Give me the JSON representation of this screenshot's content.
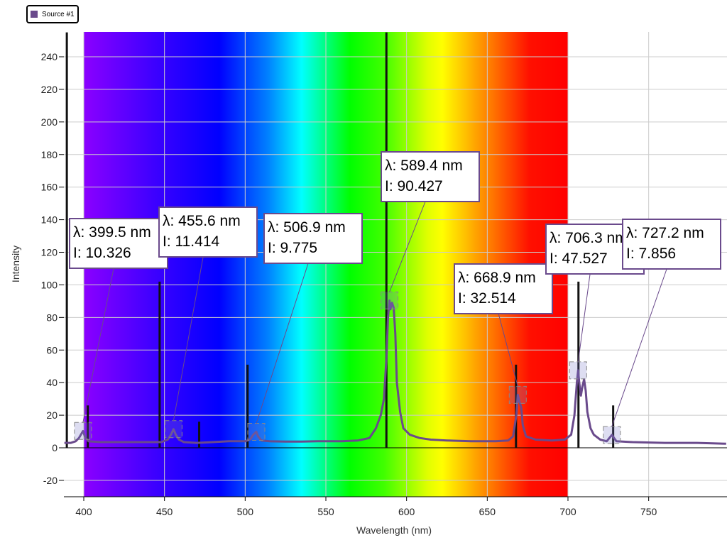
{
  "legend": {
    "items": [
      {
        "label": "Source #1",
        "color": "#6a4a8c"
      }
    ]
  },
  "chart_data": {
    "type": "line",
    "title": "",
    "xlabel": "Wavelength (nm)",
    "ylabel": "Intensity",
    "xlim": [
      388,
      798
    ],
    "ylim": [
      -30,
      255
    ],
    "x_ticks": [
      400,
      450,
      500,
      550,
      600,
      650,
      700,
      750
    ],
    "y_ticks": [
      -20,
      0,
      20,
      40,
      60,
      80,
      100,
      120,
      140,
      160,
      180,
      200,
      220,
      240
    ],
    "spectrum_band": [
      400,
      700
    ],
    "grid": true,
    "series": [
      {
        "name": "Source #1",
        "color": "#6a4a8c",
        "points": [
          [
            388,
            3
          ],
          [
            392,
            3
          ],
          [
            395,
            4
          ],
          [
            397,
            6
          ],
          [
            399.5,
            10.3
          ],
          [
            401,
            6
          ],
          [
            403,
            4
          ],
          [
            410,
            3.5
          ],
          [
            420,
            3.5
          ],
          [
            430,
            3.5
          ],
          [
            440,
            3.5
          ],
          [
            448,
            3.5
          ],
          [
            452,
            5
          ],
          [
            454,
            8
          ],
          [
            455.6,
            11.4
          ],
          [
            457,
            8
          ],
          [
            459,
            5
          ],
          [
            462,
            3.5
          ],
          [
            470,
            3
          ],
          [
            480,
            3.5
          ],
          [
            490,
            4
          ],
          [
            495,
            4
          ],
          [
            500,
            4
          ],
          [
            503,
            5
          ],
          [
            505,
            8
          ],
          [
            506.9,
            9.8
          ],
          [
            508,
            7
          ],
          [
            510,
            4.5
          ],
          [
            515,
            4
          ],
          [
            525,
            3.8
          ],
          [
            535,
            3.8
          ],
          [
            545,
            4
          ],
          [
            560,
            4
          ],
          [
            570,
            4.5
          ],
          [
            577,
            6
          ],
          [
            581,
            12
          ],
          [
            584,
            20
          ],
          [
            586,
            30
          ],
          [
            587.5,
            55
          ],
          [
            588.5,
            80
          ],
          [
            589.4,
            90.4
          ],
          [
            590,
            85
          ],
          [
            591,
            89
          ],
          [
            592,
            86
          ],
          [
            593,
            70
          ],
          [
            594,
            40
          ],
          [
            596,
            22
          ],
          [
            598,
            12
          ],
          [
            602,
            8
          ],
          [
            608,
            6
          ],
          [
            615,
            5
          ],
          [
            625,
            4.5
          ],
          [
            640,
            4
          ],
          [
            655,
            4
          ],
          [
            663,
            4.5
          ],
          [
            666,
            7
          ],
          [
            668,
            20
          ],
          [
            668.9,
            32.5
          ],
          [
            670,
            28
          ],
          [
            671,
            25
          ],
          [
            672,
            14
          ],
          [
            674,
            7
          ],
          [
            680,
            5
          ],
          [
            690,
            4.5
          ],
          [
            698,
            5
          ],
          [
            702,
            8
          ],
          [
            704,
            20
          ],
          [
            705.5,
            40
          ],
          [
            706.3,
            47.5
          ],
          [
            707,
            40
          ],
          [
            708,
            32
          ],
          [
            709,
            38
          ],
          [
            710,
            42
          ],
          [
            711,
            35
          ],
          [
            712,
            22
          ],
          [
            714,
            12
          ],
          [
            716,
            8
          ],
          [
            720,
            5
          ],
          [
            724,
            4
          ],
          [
            727.2,
            7.9
          ],
          [
            730,
            4
          ],
          [
            740,
            3.5
          ],
          [
            760,
            3
          ],
          [
            780,
            3
          ],
          [
            798,
            2.5
          ]
        ]
      }
    ],
    "reference_lines": [
      {
        "x": 389.5,
        "height": 255
      },
      {
        "x": 402.5,
        "height": 26
      },
      {
        "x": 447,
        "height": 102
      },
      {
        "x": 471.5,
        "height": 16
      },
      {
        "x": 501.5,
        "height": 51
      },
      {
        "x": 587.5,
        "height": 255
      },
      {
        "x": 667.8,
        "height": 51
      },
      {
        "x": 706.5,
        "height": 102
      },
      {
        "x": 728,
        "height": 26
      }
    ],
    "annotations": [
      {
        "line1": "λ: 399.5 nm",
        "line2": "I: 10.326",
        "x": 399.5,
        "y": 10.326
      },
      {
        "line1": "λ: 455.6 nm",
        "line2": "I: 11.414",
        "x": 455.6,
        "y": 11.414
      },
      {
        "line1": "λ: 506.9 nm",
        "line2": "I: 9.775",
        "x": 506.9,
        "y": 9.775
      },
      {
        "line1": "λ: 589.4 nm",
        "line2": "I: 90.427",
        "x": 589.4,
        "y": 90.427
      },
      {
        "line1": "λ: 668.9 nm",
        "line2": "I: 32.514",
        "x": 668.9,
        "y": 32.514
      },
      {
        "line1": "λ: 706.3 nm",
        "line2": "I: 47.527",
        "x": 706.3,
        "y": 47.527
      },
      {
        "line1": "λ: 727.2 nm",
        "line2": "I: 7.856",
        "x": 727.2,
        "y": 7.856
      }
    ]
  }
}
